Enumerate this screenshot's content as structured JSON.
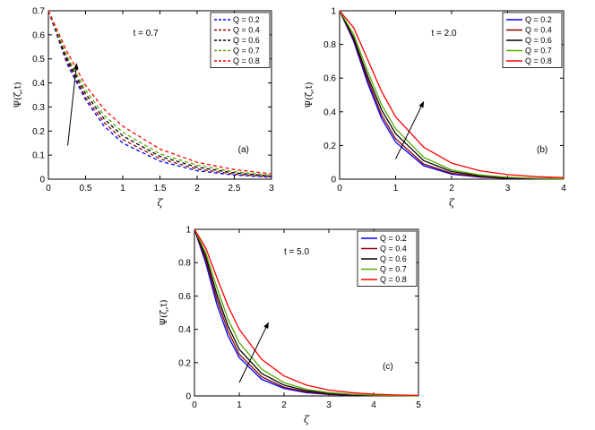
{
  "chart_data": [
    {
      "id": "a",
      "type": "line",
      "line_style": "dashed",
      "panel_label": "(a)",
      "annotation": "t = 0.7",
      "xlabel": "ζ",
      "ylabel": "Ψ(ζ,t)",
      "xlim": [
        0,
        3
      ],
      "ylim": [
        0,
        0.7
      ],
      "xticks": [
        "0",
        "0.5",
        "1",
        "1.5",
        "2",
        "2.5",
        "3"
      ],
      "yticks": [
        "0",
        "0.1",
        "0.2",
        "0.3",
        "0.4",
        "0.5",
        "0.6",
        "0.7"
      ],
      "legend_position": "top-right",
      "series": [
        {
          "name": "Q = 0.2",
          "color": "#0000ff",
          "x": [
            0,
            0.25,
            0.5,
            0.75,
            1,
            1.5,
            2,
            2.5,
            3
          ],
          "values": [
            0.7,
            0.48,
            0.33,
            0.22,
            0.15,
            0.075,
            0.035,
            0.017,
            0.008
          ]
        },
        {
          "name": "Q = 0.4",
          "color": "#8b0000",
          "x": [
            0,
            0.25,
            0.5,
            0.75,
            1,
            1.5,
            2,
            2.5,
            3
          ],
          "values": [
            0.7,
            0.49,
            0.34,
            0.235,
            0.165,
            0.085,
            0.042,
            0.021,
            0.01
          ]
        },
        {
          "name": "Q = 0.6",
          "color": "#000000",
          "x": [
            0,
            0.25,
            0.5,
            0.75,
            1,
            1.5,
            2,
            2.5,
            3
          ],
          "values": [
            0.7,
            0.5,
            0.355,
            0.25,
            0.18,
            0.095,
            0.05,
            0.026,
            0.013
          ]
        },
        {
          "name": "Q = 0.7",
          "color": "#55aa00",
          "x": [
            0,
            0.25,
            0.5,
            0.75,
            1,
            1.5,
            2,
            2.5,
            3
          ],
          "values": [
            0.7,
            0.51,
            0.37,
            0.265,
            0.195,
            0.105,
            0.058,
            0.031,
            0.016
          ]
        },
        {
          "name": "Q = 0.8",
          "color": "#ff0000",
          "x": [
            0,
            0.25,
            0.5,
            0.75,
            1,
            1.5,
            2,
            2.5,
            3
          ],
          "values": [
            0.7,
            0.53,
            0.39,
            0.29,
            0.22,
            0.125,
            0.07,
            0.04,
            0.022
          ]
        }
      ]
    },
    {
      "id": "b",
      "type": "line",
      "line_style": "solid",
      "panel_label": "(b)",
      "annotation": "t = 2.0",
      "xlabel": "ζ",
      "ylabel": "Ψ(ζ,t)",
      "xlim": [
        0,
        4
      ],
      "ylim": [
        0,
        1
      ],
      "xticks": [
        "0",
        "1",
        "2",
        "3",
        "4"
      ],
      "yticks": [
        "0",
        "0.2",
        "0.4",
        "0.6",
        "0.8",
        "1"
      ],
      "legend_position": "top-right",
      "series": [
        {
          "name": "Q = 0.2",
          "color": "#0000ff",
          "x": [
            0,
            0.25,
            0.5,
            0.75,
            1,
            1.5,
            2,
            2.5,
            3,
            3.5,
            4
          ],
          "values": [
            1,
            0.82,
            0.57,
            0.36,
            0.22,
            0.08,
            0.03,
            0.012,
            0.005,
            0.002,
            0.001
          ]
        },
        {
          "name": "Q = 0.4",
          "color": "#8b0000",
          "x": [
            0,
            0.25,
            0.5,
            0.75,
            1,
            1.5,
            2,
            2.5,
            3,
            3.5,
            4
          ],
          "values": [
            1,
            0.83,
            0.59,
            0.38,
            0.24,
            0.09,
            0.035,
            0.015,
            0.006,
            0.003,
            0.001
          ]
        },
        {
          "name": "Q = 0.6",
          "color": "#000000",
          "x": [
            0,
            0.25,
            0.5,
            0.75,
            1,
            1.5,
            2,
            2.5,
            3,
            3.5,
            4
          ],
          "values": [
            1,
            0.84,
            0.61,
            0.41,
            0.27,
            0.11,
            0.045,
            0.02,
            0.008,
            0.004,
            0.002
          ]
        },
        {
          "name": "Q = 0.7",
          "color": "#55aa00",
          "x": [
            0,
            0.25,
            0.5,
            0.75,
            1,
            1.5,
            2,
            2.5,
            3,
            3.5,
            4
          ],
          "values": [
            1,
            0.86,
            0.64,
            0.44,
            0.3,
            0.13,
            0.055,
            0.025,
            0.011,
            0.005,
            0.002
          ]
        },
        {
          "name": "Q = 0.8",
          "color": "#ff0000",
          "x": [
            0,
            0.25,
            0.5,
            0.75,
            1,
            1.5,
            2,
            2.5,
            3,
            3.5,
            4
          ],
          "values": [
            1,
            0.9,
            0.71,
            0.52,
            0.37,
            0.19,
            0.095,
            0.05,
            0.027,
            0.015,
            0.009
          ]
        }
      ]
    },
    {
      "id": "c",
      "type": "line",
      "line_style": "solid",
      "panel_label": "(c)",
      "annotation": "t = 5.0",
      "xlabel": "ζ",
      "ylabel": "Ψ(ζ,t)",
      "xlim": [
        0,
        5
      ],
      "ylim": [
        0,
        1
      ],
      "xticks": [
        "0",
        "1",
        "2",
        "3",
        "4",
        "5"
      ],
      "yticks": [
        "0",
        "0.2",
        "0.4",
        "0.6",
        "0.8",
        "1"
      ],
      "legend_position": "top-right",
      "series": [
        {
          "name": "Q = 0.2",
          "color": "#0000ff",
          "x": [
            0,
            0.25,
            0.5,
            0.75,
            1,
            1.5,
            2,
            2.5,
            3,
            3.5,
            4,
            4.5,
            5
          ],
          "values": [
            1,
            0.8,
            0.55,
            0.36,
            0.23,
            0.1,
            0.045,
            0.02,
            0.009,
            0.004,
            0.002,
            0.001,
            0.0005
          ]
        },
        {
          "name": "Q = 0.4",
          "color": "#8b0000",
          "x": [
            0,
            0.25,
            0.5,
            0.75,
            1,
            1.5,
            2,
            2.5,
            3,
            3.5,
            4,
            4.5,
            5
          ],
          "values": [
            1,
            0.82,
            0.58,
            0.39,
            0.25,
            0.115,
            0.052,
            0.024,
            0.011,
            0.005,
            0.002,
            0.001,
            0.0006
          ]
        },
        {
          "name": "Q = 0.6",
          "color": "#000000",
          "x": [
            0,
            0.25,
            0.5,
            0.75,
            1,
            1.5,
            2,
            2.5,
            3,
            3.5,
            4,
            4.5,
            5
          ],
          "values": [
            1,
            0.84,
            0.61,
            0.42,
            0.28,
            0.135,
            0.065,
            0.031,
            0.015,
            0.007,
            0.003,
            0.0015,
            0.0008
          ]
        },
        {
          "name": "Q = 0.7",
          "color": "#55aa00",
          "x": [
            0,
            0.25,
            0.5,
            0.75,
            1,
            1.5,
            2,
            2.5,
            3,
            3.5,
            4,
            4.5,
            5
          ],
          "values": [
            1,
            0.86,
            0.65,
            0.46,
            0.32,
            0.16,
            0.08,
            0.04,
            0.02,
            0.01,
            0.005,
            0.0025,
            0.0012
          ]
        },
        {
          "name": "Q = 0.8",
          "color": "#ff0000",
          "x": [
            0,
            0.25,
            0.5,
            0.75,
            1,
            1.5,
            2,
            2.5,
            3,
            3.5,
            4,
            4.5,
            5
          ],
          "values": [
            1,
            0.89,
            0.71,
            0.54,
            0.4,
            0.22,
            0.12,
            0.065,
            0.035,
            0.02,
            0.011,
            0.006,
            0.003
          ]
        }
      ]
    }
  ]
}
